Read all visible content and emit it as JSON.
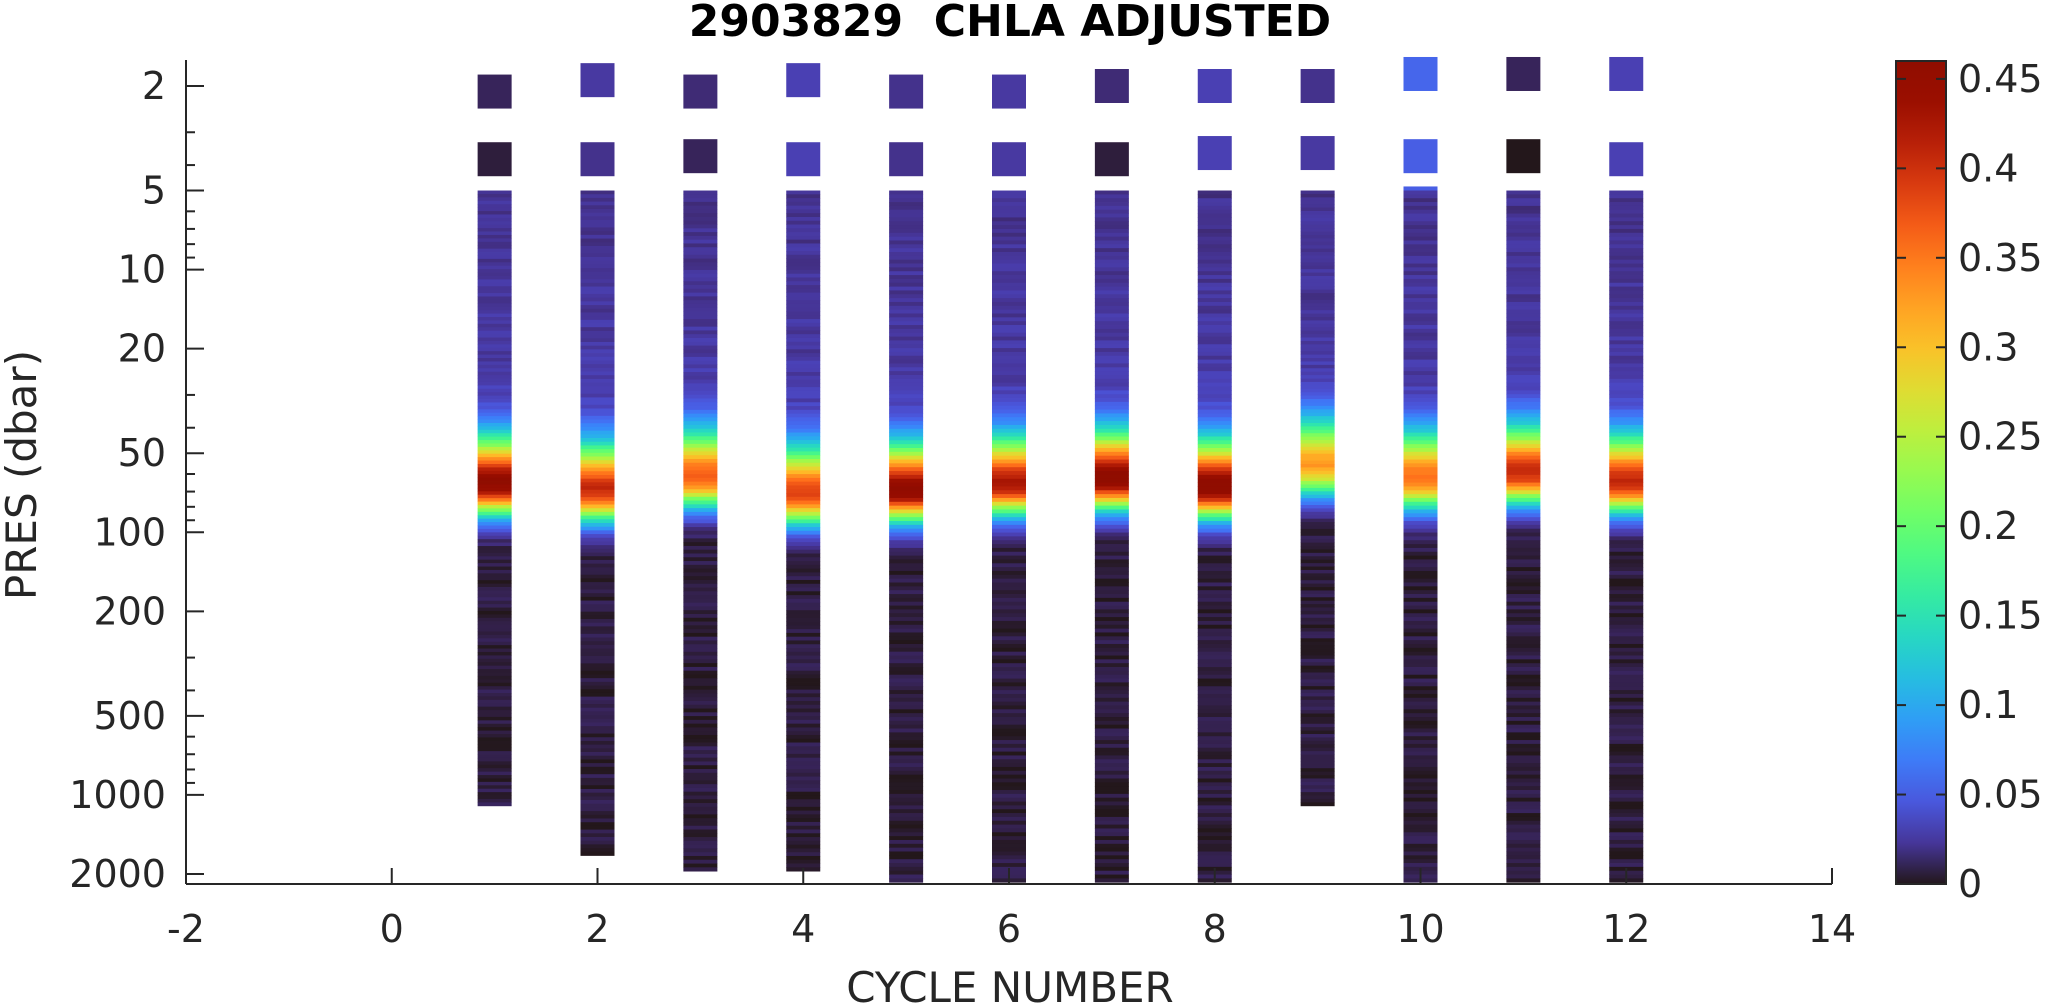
{
  "chart_data": {
    "type": "heatmap",
    "title": "2903829  CHLA ADJUSTED",
    "xlabel": "CYCLE NUMBER",
    "ylabel": "PRES (dbar)",
    "xlim": [
      -2,
      14
    ],
    "x_ticks": [
      -2,
      0,
      2,
      4,
      6,
      8,
      10,
      12,
      14
    ],
    "x_tick_labels": [
      "-2",
      "0",
      "2",
      "4",
      "6",
      "8",
      "10",
      "12",
      "14"
    ],
    "y_scale": "log",
    "y_reversed": true,
    "ylim": [
      1.6,
      2150
    ],
    "y_ticks": [
      2,
      5,
      10,
      20,
      50,
      100,
      200,
      500,
      1000,
      2000
    ],
    "y_tick_labels": [
      "2",
      "5",
      "10",
      "20",
      "50",
      "100",
      "200",
      "500",
      "1000",
      "2000"
    ],
    "colorbar": {
      "colormap": "turbo",
      "clim": [
        0,
        0.46
      ],
      "ticks": [
        0,
        0.05,
        0.1,
        0.15,
        0.2,
        0.25,
        0.3,
        0.35,
        0.4,
        0.45
      ],
      "tick_labels": [
        "0",
        "0.05",
        "0.1",
        "0.15",
        "0.2",
        "0.25",
        "0.3",
        "0.35",
        "0.4",
        "0.45"
      ]
    },
    "profiles": [
      {
        "cycle": 1,
        "max_pres": 1100,
        "surface_samples": [
          {
            "pres": 2.1,
            "value": 0.01
          },
          {
            "pres": 3.8,
            "value": 0.005
          }
        ],
        "peak_pres": 66,
        "peak_value": 0.45
      },
      {
        "cycle": 2,
        "max_pres": 1700,
        "surface_samples": [
          {
            "pres": 1.9,
            "value": 0.025
          },
          {
            "pres": 3.8,
            "value": 0.02
          }
        ],
        "peak_pres": 70,
        "peak_value": 0.4
      },
      {
        "cycle": 3,
        "max_pres": 1950,
        "surface_samples": [
          {
            "pres": 2.1,
            "value": 0.015
          },
          {
            "pres": 3.7,
            "value": 0.01
          }
        ],
        "peak_pres": 62,
        "peak_value": 0.36
      },
      {
        "cycle": 4,
        "max_pres": 1950,
        "surface_samples": [
          {
            "pres": 1.9,
            "value": 0.03
          },
          {
            "pres": 3.8,
            "value": 0.03
          }
        ],
        "peak_pres": 72,
        "peak_value": 0.38
      },
      {
        "cycle": 5,
        "max_pres": 2150,
        "surface_samples": [
          {
            "pres": 2.1,
            "value": 0.02
          },
          {
            "pres": 3.8,
            "value": 0.02
          }
        ],
        "peak_pres": 70,
        "peak_value": 0.45
      },
      {
        "cycle": 6,
        "max_pres": 2150,
        "surface_samples": [
          {
            "pres": 2.1,
            "value": 0.025
          },
          {
            "pres": 3.8,
            "value": 0.025
          }
        ],
        "peak_pres": 66,
        "peak_value": 0.42
      },
      {
        "cycle": 7,
        "max_pres": 2150,
        "surface_samples": [
          {
            "pres": 2.0,
            "value": 0.015
          },
          {
            "pres": 3.8,
            "value": 0.005
          }
        ],
        "peak_pres": 63,
        "peak_value": 0.46
      },
      {
        "cycle": 8,
        "max_pres": 2150,
        "surface_samples": [
          {
            "pres": 2.0,
            "value": 0.03
          },
          {
            "pres": 3.6,
            "value": 0.03
          }
        ],
        "peak_pres": 68,
        "peak_value": 0.46
      },
      {
        "cycle": 9,
        "max_pres": 1100,
        "surface_samples": [
          {
            "pres": 2.0,
            "value": 0.02
          },
          {
            "pres": 3.6,
            "value": 0.025
          }
        ],
        "peak_pres": 56,
        "peak_value": 0.32
      },
      {
        "cycle": 10,
        "max_pres": 2150,
        "surface_samples": [
          {
            "pres": 1.8,
            "value": 0.055
          },
          {
            "pres": 3.7,
            "value": 0.05
          },
          {
            "pres": 5.6,
            "value": 0.05
          }
        ],
        "peak_pres": 63,
        "peak_value": 0.35
      },
      {
        "cycle": 11,
        "max_pres": 2150,
        "surface_samples": [
          {
            "pres": 1.8,
            "value": 0.01
          },
          {
            "pres": 3.7,
            "value": 0.0
          }
        ],
        "peak_pres": 60,
        "peak_value": 0.4
      },
      {
        "cycle": 12,
        "max_pres": 2150,
        "surface_samples": [
          {
            "pres": 1.8,
            "value": 0.03
          },
          {
            "pres": 3.8,
            "value": 0.03
          }
        ],
        "peak_pres": 65,
        "peak_value": 0.4
      }
    ]
  }
}
